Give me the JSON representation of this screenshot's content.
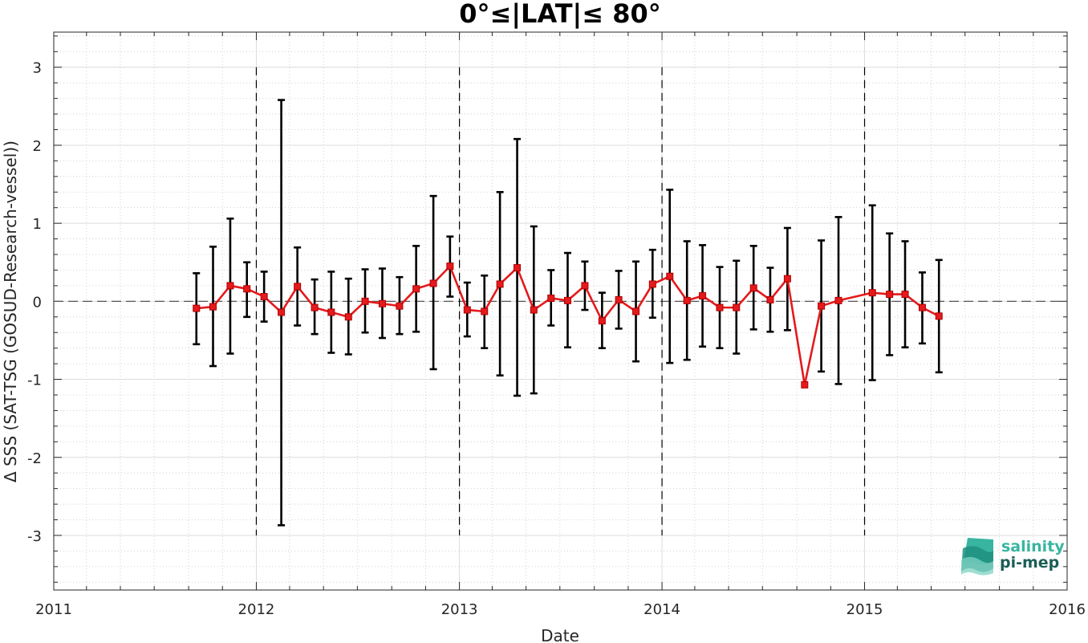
{
  "chart_data": {
    "type": "line",
    "title": "0°≤|LAT|≤ 80°",
    "xlabel": "Date",
    "ylabel": "Δ SSS (SAT-TSG (GOSUD-Research-vessel))",
    "xlim": [
      "2011-01-01",
      "2016-01-01"
    ],
    "ylim": [
      -3.7,
      3.45
    ],
    "x_ticks": [
      "2011",
      "2012",
      "2013",
      "2014",
      "2015",
      "2016"
    ],
    "y_ticks": [
      -3,
      -2,
      -1,
      0,
      1,
      2,
      3
    ],
    "grid": true,
    "minor_grid": true,
    "reference_line_y": 0,
    "year_markers": [
      "2012-01-01",
      "2013-01-01",
      "2014-01-01",
      "2015-01-01"
    ],
    "line_color": "#e41a1c",
    "marker": "square",
    "errorbar_color": "#000000",
    "series": [
      {
        "points": [
          {
            "date": "2011-09-15",
            "y": -0.09,
            "low": -0.55,
            "high": 0.36
          },
          {
            "date": "2011-10-15",
            "y": -0.07,
            "low": -0.83,
            "high": 0.7
          },
          {
            "date": "2011-11-15",
            "y": 0.2,
            "low": -0.67,
            "high": 1.06
          },
          {
            "date": "2011-12-15",
            "y": 0.16,
            "low": -0.2,
            "high": 0.5
          },
          {
            "date": "2012-01-15",
            "y": 0.06,
            "low": -0.26,
            "high": 0.38
          },
          {
            "date": "2012-02-15",
            "y": -0.14,
            "low": -2.87,
            "high": 2.58
          },
          {
            "date": "2012-03-15",
            "y": 0.19,
            "low": -0.31,
            "high": 0.69
          },
          {
            "date": "2012-04-15",
            "y": -0.08,
            "low": -0.42,
            "high": 0.28
          },
          {
            "date": "2012-05-15",
            "y": -0.14,
            "low": -0.66,
            "high": 0.38
          },
          {
            "date": "2012-06-15",
            "y": -0.2,
            "low": -0.68,
            "high": 0.29
          },
          {
            "date": "2012-07-15",
            "y": 0.0,
            "low": -0.4,
            "high": 0.41
          },
          {
            "date": "2012-08-15",
            "y": -0.03,
            "low": -0.47,
            "high": 0.42
          },
          {
            "date": "2012-09-15",
            "y": -0.06,
            "low": -0.42,
            "high": 0.31
          },
          {
            "date": "2012-10-15",
            "y": 0.16,
            "low": -0.39,
            "high": 0.71
          },
          {
            "date": "2012-11-15",
            "y": 0.23,
            "low": -0.87,
            "high": 1.35
          },
          {
            "date": "2012-12-15",
            "y": 0.45,
            "low": 0.06,
            "high": 0.83
          },
          {
            "date": "2013-01-15",
            "y": -0.11,
            "low": -0.45,
            "high": 0.24
          },
          {
            "date": "2013-02-15",
            "y": -0.13,
            "low": -0.6,
            "high": 0.33
          },
          {
            "date": "2013-03-15",
            "y": 0.22,
            "low": -0.95,
            "high": 1.4
          },
          {
            "date": "2013-04-15",
            "y": 0.43,
            "low": -1.21,
            "high": 2.08
          },
          {
            "date": "2013-05-15",
            "y": -0.11,
            "low": -1.18,
            "high": 0.96
          },
          {
            "date": "2013-06-15",
            "y": 0.04,
            "low": -0.31,
            "high": 0.4
          },
          {
            "date": "2013-07-15",
            "y": 0.01,
            "low": -0.59,
            "high": 0.62
          },
          {
            "date": "2013-08-15",
            "y": 0.2,
            "low": -0.11,
            "high": 0.51
          },
          {
            "date": "2013-09-15",
            "y": -0.25,
            "low": -0.6,
            "high": 0.11
          },
          {
            "date": "2013-10-15",
            "y": 0.02,
            "low": -0.35,
            "high": 0.39
          },
          {
            "date": "2013-11-15",
            "y": -0.13,
            "low": -0.77,
            "high": 0.51
          },
          {
            "date": "2013-12-15",
            "y": 0.22,
            "low": -0.21,
            "high": 0.66
          },
          {
            "date": "2014-01-15",
            "y": 0.32,
            "low": -0.79,
            "high": 1.43
          },
          {
            "date": "2014-02-15",
            "y": 0.01,
            "low": -0.75,
            "high": 0.77
          },
          {
            "date": "2014-03-15",
            "y": 0.07,
            "low": -0.58,
            "high": 0.72
          },
          {
            "date": "2014-04-15",
            "y": -0.08,
            "low": -0.6,
            "high": 0.44
          },
          {
            "date": "2014-05-15",
            "y": -0.08,
            "low": -0.67,
            "high": 0.52
          },
          {
            "date": "2014-06-15",
            "y": 0.17,
            "low": -0.36,
            "high": 0.71
          },
          {
            "date": "2014-07-15",
            "y": 0.02,
            "low": -0.39,
            "high": 0.43
          },
          {
            "date": "2014-08-15",
            "y": 0.29,
            "low": -0.37,
            "high": 0.94
          },
          {
            "date": "2014-09-15",
            "y": -1.07,
            "low": -1.07,
            "high": -1.07
          },
          {
            "date": "2014-10-15",
            "y": -0.06,
            "low": -0.9,
            "high": 0.78
          },
          {
            "date": "2014-11-15",
            "y": 0.01,
            "low": -1.06,
            "high": 1.08
          },
          {
            "date": "2015-01-15",
            "y": 0.11,
            "low": -1.01,
            "high": 1.23
          },
          {
            "date": "2015-02-15",
            "y": 0.09,
            "low": -0.69,
            "high": 0.87
          },
          {
            "date": "2015-03-15",
            "y": 0.09,
            "low": -0.59,
            "high": 0.77
          },
          {
            "date": "2015-04-15",
            "y": -0.08,
            "low": -0.54,
            "high": 0.37
          },
          {
            "date": "2015-05-15",
            "y": -0.19,
            "low": -0.91,
            "high": 0.53
          }
        ]
      }
    ]
  },
  "logo": {
    "line1": "salinity",
    "line2": "pi-mep",
    "color_light": "#37b5a0",
    "color_dark": "#1b5e57"
  }
}
